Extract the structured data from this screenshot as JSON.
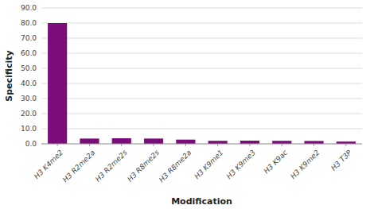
{
  "chart_data": {
    "type": "bar",
    "categories": [
      "H3 K4me2",
      "H3 R2me2a",
      "H3 R2me2s",
      "H3 R8me2s",
      "H3 R8me2a",
      "H3 K9me1",
      "H3 K9me3",
      "H3 K9ac",
      "H3 K9me2",
      "H3 T3P"
    ],
    "values": [
      80.0,
      3.5,
      3.7,
      3.5,
      2.8,
      2.0,
      2.1,
      2.0,
      1.9,
      1.5
    ],
    "color": "#7B0D7B",
    "xlabel": "Modification",
    "ylabel": "Specificity",
    "ylim": [
      0,
      90
    ],
    "yticks": [
      {
        "value": 0,
        "label": "0.0"
      },
      {
        "value": 10,
        "label": "10.0"
      },
      {
        "value": 20,
        "label": "20.0"
      },
      {
        "value": 30,
        "label": "30.0"
      },
      {
        "value": 40,
        "label": "40.0"
      },
      {
        "value": 50,
        "label": "50.0"
      },
      {
        "value": 60,
        "label": "60.0"
      },
      {
        "value": 70,
        "label": "70.0"
      },
      {
        "value": 80,
        "label": "80.0"
      },
      {
        "value": 90,
        "label": "90.0"
      }
    ],
    "grid": true
  }
}
